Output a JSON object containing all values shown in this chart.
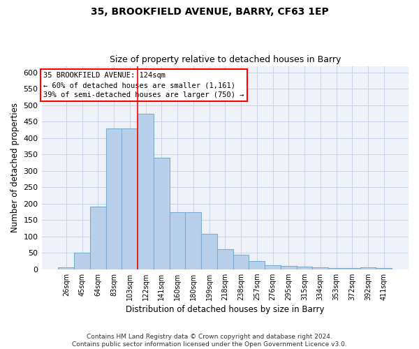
{
  "title": "35, BROOKFIELD AVENUE, BARRY, CF63 1EP",
  "subtitle": "Size of property relative to detached houses in Barry",
  "xlabel": "Distribution of detached houses by size in Barry",
  "ylabel": "Number of detached properties",
  "categories": [
    "26sqm",
    "45sqm",
    "64sqm",
    "83sqm",
    "103sqm",
    "122sqm",
    "141sqm",
    "160sqm",
    "180sqm",
    "199sqm",
    "218sqm",
    "238sqm",
    "257sqm",
    "276sqm",
    "295sqm",
    "315sqm",
    "334sqm",
    "353sqm",
    "372sqm",
    "392sqm",
    "411sqm"
  ],
  "values": [
    5,
    50,
    190,
    430,
    430,
    475,
    340,
    175,
    175,
    107,
    62,
    45,
    25,
    12,
    10,
    8,
    6,
    4,
    4,
    6,
    3
  ],
  "bar_color": "#b8d0ea",
  "bar_edge_color": "#7aaed0",
  "grid_color": "#c8d4e8",
  "background_color": "#eef2f8",
  "vline_x_index": 5,
  "annotation_line1": "35 BROOKFIELD AVENUE: 124sqm",
  "annotation_line2": "← 60% of detached houses are smaller (1,161)",
  "annotation_line3": "39% of semi-detached houses are larger (750) →",
  "footer1": "Contains HM Land Registry data © Crown copyright and database right 2024.",
  "footer2": "Contains public sector information licensed under the Open Government Licence v3.0.",
  "ylim": [
    0,
    620
  ],
  "yticks": [
    0,
    50,
    100,
    150,
    200,
    250,
    300,
    350,
    400,
    450,
    500,
    550,
    600
  ]
}
